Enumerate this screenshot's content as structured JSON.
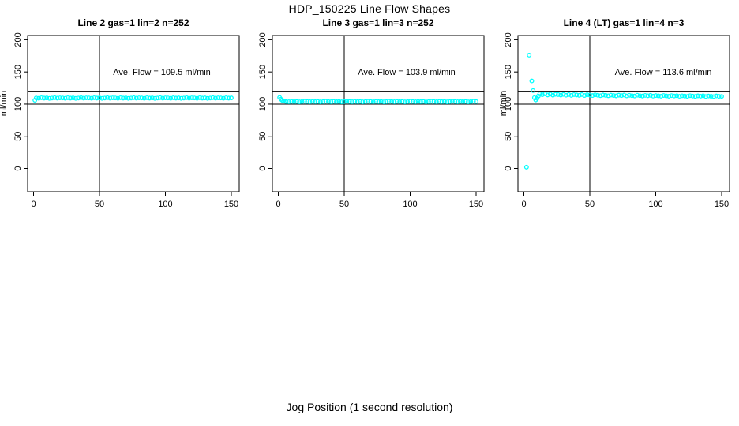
{
  "page": {
    "title": "HDP_150225  Line Flow Shapes",
    "xlabel": "Jog Position (1 second resolution)"
  },
  "chart_data": [
    {
      "type": "scatter",
      "title": "Line 2 gas=1 lin=2 n=252",
      "annotation": "Ave. Flow =  109.5  ml/min",
      "ave_flow": 109.5,
      "n": 252,
      "ylabel": "ml/min",
      "x_ticks": [
        0,
        50,
        100,
        150
      ],
      "y_ticks": [
        0,
        50,
        100,
        150,
        200
      ],
      "xlim": [
        -4.5,
        156.5
      ],
      "ylim": [
        -36,
        207
      ],
      "ref_lines_h": [
        100,
        120
      ],
      "ref_lines_v": [
        50
      ],
      "marker_color": "#00FFFF",
      "extra_points": [
        [
          1,
          106.0
        ]
      ],
      "band": {
        "x_start": 2,
        "x_step": 2,
        "y": [
          109.5,
          109.1,
          109.8,
          109.3,
          109.6,
          108.9,
          109.4,
          110.0,
          109.2,
          109.7,
          109.5,
          109.1,
          109.8,
          109.3,
          109.6,
          108.9,
          109.4,
          110.0,
          109.2,
          109.7,
          109.5,
          109.1,
          109.8,
          109.3,
          109.6,
          108.9,
          109.4,
          110.0,
          109.2,
          109.7,
          109.5,
          109.1,
          109.8,
          109.3,
          109.6,
          108.9,
          109.4,
          110.0,
          109.2,
          109.7,
          109.5,
          109.1,
          109.8,
          109.3,
          109.6,
          108.9,
          109.4,
          110.0,
          109.2,
          109.7,
          109.5,
          109.1,
          109.8,
          109.3,
          109.6,
          108.9,
          109.4,
          110.0,
          109.2,
          109.7,
          109.5,
          109.1,
          109.8,
          109.3,
          109.6,
          108.9,
          109.4,
          110.0,
          109.2,
          109.7,
          109.5,
          109.1,
          109.8,
          109.3,
          109.6
        ]
      }
    },
    {
      "type": "scatter",
      "title": "Line 3 gas=1 lin=3 n=252",
      "annotation": "Ave. Flow =  103.9  ml/min",
      "ave_flow": 103.9,
      "n": 252,
      "ylabel": "",
      "x_ticks": [
        0,
        50,
        100,
        150
      ],
      "y_ticks": [
        0,
        50,
        100,
        150,
        200
      ],
      "xlim": [
        -4.5,
        156.5
      ],
      "ylim": [
        -36,
        207
      ],
      "ref_lines_h": [
        100,
        120
      ],
      "ref_lines_v": [
        50
      ],
      "marker_color": "#00FFFF",
      "extra_points": [
        [
          1,
          110.3
        ],
        [
          2,
          107.6
        ],
        [
          3,
          105.9
        ],
        [
          4,
          105.1
        ],
        [
          5,
          104.5
        ]
      ],
      "band": {
        "x_start": 6,
        "x_step": 2,
        "y": [
          104.0,
          103.7,
          104.2,
          103.8,
          104.1,
          103.6,
          103.9,
          104.3,
          104.0,
          103.7,
          104.2,
          103.8,
          104.1,
          103.6,
          103.9,
          104.3,
          104.0,
          103.7,
          104.2,
          103.8,
          104.1,
          103.6,
          103.9,
          104.3,
          104.0,
          103.7,
          104.2,
          103.8,
          104.1,
          103.6,
          103.9,
          104.3,
          104.0,
          103.7,
          104.2,
          103.8,
          104.1,
          103.6,
          103.9,
          104.3,
          104.0,
          103.7,
          104.2,
          103.8,
          104.1,
          103.6,
          103.9,
          104.3,
          104.0,
          103.7,
          104.2,
          103.8,
          104.1,
          103.6,
          103.9,
          104.3,
          104.0,
          103.7,
          104.2,
          103.8,
          104.1,
          103.6,
          103.9,
          104.3,
          104.0,
          103.7,
          104.2,
          103.8,
          104.1,
          103.6,
          103.9,
          104.3,
          104.0
        ]
      }
    },
    {
      "type": "scatter",
      "title": "Line 4 (LT) gas=1 lin=4 n=3",
      "annotation": "Ave. Flow =  113.6  ml/min",
      "ave_flow": 113.6,
      "n": 3,
      "ylabel": "ml/min",
      "x_ticks": [
        0,
        50,
        100,
        150
      ],
      "y_ticks": [
        0,
        50,
        100,
        150,
        200
      ],
      "xlim": [
        -4.5,
        156.5
      ],
      "ylim": [
        -36,
        207
      ],
      "ref_lines_h": [
        100,
        120
      ],
      "ref_lines_v": [
        50
      ],
      "marker_color": "#00FFFF",
      "extra_points": [
        [
          2,
          2
        ],
        [
          4,
          176
        ],
        [
          6,
          136
        ],
        [
          7,
          121
        ],
        [
          8,
          110
        ],
        [
          9,
          106.5
        ],
        [
          10,
          109
        ],
        [
          11,
          112.5
        ]
      ],
      "band": {
        "x_start": 12,
        "x_step": 2,
        "y": [
          116.0,
          114.6,
          115.8,
          114.2,
          115.5,
          113.9,
          115.2,
          114.8,
          114.0,
          115.0,
          113.8,
          114.9,
          113.5,
          114.7,
          114.2,
          113.6,
          114.8,
          113.4,
          114.5,
          114.0,
          113.3,
          114.4,
          113.8,
          113.1,
          114.2,
          113.6,
          112.9,
          114.0,
          113.4,
          112.8,
          113.9,
          113.2,
          114.1,
          112.7,
          113.7,
          113.0,
          112.6,
          113.8,
          113.1,
          112.5,
          113.5,
          112.9,
          113.6,
          112.4,
          113.3,
          112.8,
          112.3,
          113.4,
          112.7,
          112.2,
          113.2,
          112.6,
          113.0,
          112.1,
          112.9,
          112.5,
          112.0,
          113.1,
          112.4,
          111.9,
          112.8,
          112.3,
          112.9,
          111.8,
          112.6,
          112.2,
          111.7,
          112.7,
          112.1,
          112.0
        ]
      }
    }
  ]
}
